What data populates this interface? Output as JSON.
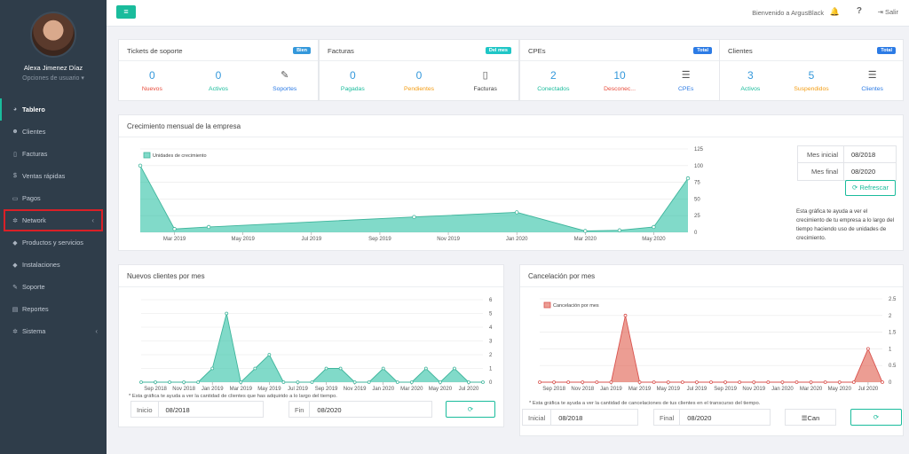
{
  "user": {
    "name": "Alexa Jimenez Díaz",
    "options": "Opciones de usuario"
  },
  "sidebar": {
    "items": [
      {
        "label": "Tablero",
        "icon": "dashboard-icon"
      },
      {
        "label": "Clientes",
        "icon": "users-icon"
      },
      {
        "label": "Facturas",
        "icon": "file-icon"
      },
      {
        "label": "Ventas rápidas",
        "icon": "dollar-icon"
      },
      {
        "label": "Pagos",
        "icon": "money-icon"
      },
      {
        "label": "Network",
        "icon": "cog-icon"
      },
      {
        "label": "Productos y servicios",
        "icon": "tags-icon"
      },
      {
        "label": "Instalaciones",
        "icon": "tag-icon"
      },
      {
        "label": "Soporte",
        "icon": "wrench-icon"
      },
      {
        "label": "Reportes",
        "icon": "report-icon"
      },
      {
        "label": "Sistema",
        "icon": "gears-icon"
      }
    ]
  },
  "topbar": {
    "welcome": "Bienvenido a ArgusBlack",
    "logout": "Salir"
  },
  "cards": [
    {
      "title": "Tickets de soporte",
      "badge": "Bien",
      "badge_color": "#3498db",
      "stats": [
        {
          "value": "0",
          "label": "Nuevos",
          "color": "#e74c3c"
        },
        {
          "value": "0",
          "label": "Activos",
          "color": "#1abc9c"
        },
        {
          "value": "",
          "label": "Soportes",
          "color": "#2c7be5",
          "icon": "wrench-icon"
        }
      ]
    },
    {
      "title": "Facturas",
      "badge": "Del mes",
      "badge_color": "#1fc6c6",
      "stats": [
        {
          "value": "0",
          "label": "Pagadas",
          "color": "#1abc9c"
        },
        {
          "value": "0",
          "label": "Pendientes",
          "color": "#f39c12"
        },
        {
          "value": "",
          "label": "Facturas",
          "color": "#444",
          "icon": "file-icon"
        }
      ]
    },
    {
      "title": "CPEs",
      "badge": "Total",
      "badge_color": "#2c7be5",
      "stats": [
        {
          "value": "2",
          "label": "Conectados",
          "color": "#1abc9c"
        },
        {
          "value": "10",
          "label": "Desconec...",
          "color": "#e74c3c"
        },
        {
          "value": "",
          "label": "CPEs",
          "color": "#2c7be5",
          "icon": "list-icon"
        }
      ]
    },
    {
      "title": "Clientes",
      "badge": "Total",
      "badge_color": "#2c7be5",
      "stats": [
        {
          "value": "3",
          "label": "Activos",
          "color": "#1abc9c"
        },
        {
          "value": "5",
          "label": "Suspendidos",
          "color": "#f39c12"
        },
        {
          "value": "",
          "label": "Clientes",
          "color": "#2c7be5",
          "icon": "list-icon"
        }
      ]
    }
  ],
  "growth": {
    "title": "Crecimiento mensual de la empresa",
    "legend": "Unidades de crecimiento",
    "start_label": "Mes inicial",
    "start_value": "08/2018",
    "end_label": "Mes final",
    "end_value": "08/2020",
    "refresh": "Refrescar",
    "help": "Esta gráfica te ayuda a ver el crecimiento de tu empresa a lo largo del tiempo haciendo uso de unidades de crecimiento."
  },
  "new_clients": {
    "title": "Nuevos clientes por mes",
    "note": "* Esta gráfica te ayuda a ver la cantidad de clientes que has adquirido a lo largo del tiempo.",
    "start_label": "Inicio",
    "start_value": "08/2018",
    "end_label": "Fin",
    "end_value": "08/2020"
  },
  "cancel": {
    "title": "Cancelación por mes",
    "legend": "Cancelación por mes",
    "note": "* Esta gráfica te ayuda a ver la cantidad de cancelaciones de tus clientes en el transcurso del tiempo.",
    "start_label": "Inicial",
    "start_value": "08/2018",
    "end_label": "Final",
    "end_value": "08/2020",
    "can_label": "Can"
  },
  "colors": {
    "accent": "#1abc9c",
    "danger": "#e05b4b",
    "sidebar": "#2f3d4a"
  },
  "chart_data": [
    {
      "type": "area",
      "name": "growth",
      "x": [
        "Feb 2019",
        "Mar 2019",
        "Apr 2019",
        "Oct 2019",
        "Jan 2020",
        "Mar 2020",
        "Apr 2020",
        "May 2020",
        "Jun 2020"
      ],
      "series": [
        {
          "name": "Unidades de crecimiento",
          "values": [
            100,
            5,
            8,
            23,
            30,
            2,
            3,
            8,
            81
          ]
        }
      ],
      "tick_labels_x": [
        "Mar 2019",
        "May 2019",
        "Jul 2019",
        "Sep 2019",
        "Nov 2019",
        "Jan 2020",
        "Mar 2020",
        "May 2020"
      ],
      "ylim": [
        0,
        125
      ],
      "yticks": [
        0,
        25,
        50,
        75,
        100,
        125
      ],
      "legend": "top-left"
    },
    {
      "type": "area",
      "name": "new_clients",
      "x": [
        "Aug 2018",
        "Sep 2018",
        "Oct 2018",
        "Nov 2018",
        "Dec 2018",
        "Jan 2019",
        "Feb 2019",
        "Mar 2019",
        "Apr 2019",
        "May 2019",
        "Jun 2019",
        "Jul 2019",
        "Aug 2019",
        "Sep 2019",
        "Oct 2019",
        "Nov 2019",
        "Dec 2019",
        "Jan 2020",
        "Feb 2020",
        "Mar 2020",
        "Apr 2020",
        "May 2020",
        "Jun 2020",
        "Jul 2020",
        "Aug 2020"
      ],
      "series": [
        {
          "values": [
            0,
            0,
            0,
            0,
            0,
            1,
            5,
            0,
            1,
            2,
            0,
            0,
            0,
            1,
            1,
            0,
            0,
            1,
            0,
            0,
            1,
            0,
            1,
            0,
            0
          ]
        }
      ],
      "tick_labels_x": [
        "Sep 2018",
        "Nov 2018",
        "Jan 2019",
        "Mar 2019",
        "May 2019",
        "Jul 2019",
        "Sep 2019",
        "Nov 2019",
        "Jan 2020",
        "Mar 2020",
        "May 2020",
        "Jul 2020"
      ],
      "ylim": [
        0,
        6
      ],
      "yticks": [
        0,
        1,
        2,
        3,
        4,
        5,
        6
      ]
    },
    {
      "type": "area",
      "name": "cancel",
      "x": [
        "Aug 2018",
        "Sep 2018",
        "Oct 2018",
        "Nov 2018",
        "Dec 2018",
        "Jan 2019",
        "Feb 2019",
        "Mar 2019",
        "Apr 2019",
        "May 2019",
        "Jun 2019",
        "Jul 2019",
        "Aug 2019",
        "Sep 2019",
        "Oct 2019",
        "Nov 2019",
        "Dec 2019",
        "Jan 2020",
        "Feb 2020",
        "Mar 2020",
        "Apr 2020",
        "May 2020",
        "Jun 2020",
        "Jul 2020",
        "Aug 2020"
      ],
      "series": [
        {
          "name": "Cancelación por mes",
          "values": [
            0,
            0,
            0,
            0,
            0,
            0,
            2,
            0,
            0,
            0,
            0,
            0,
            0,
            0,
            0,
            0,
            0,
            0,
            0,
            0,
            0,
            0,
            0,
            1,
            0
          ]
        }
      ],
      "tick_labels_x": [
        "Sep 2018",
        "Nov 2018",
        "Jan 2019",
        "Mar 2019",
        "May 2019",
        "Jul 2019",
        "Sep 2019",
        "Nov 2019",
        "Jan 2020",
        "Mar 2020",
        "May 2020",
        "Jul 2020"
      ],
      "ylim": [
        0,
        2.5
      ],
      "yticks": [
        0,
        0.5,
        1,
        1.5,
        2,
        2.5
      ],
      "legend": "top-left"
    }
  ]
}
